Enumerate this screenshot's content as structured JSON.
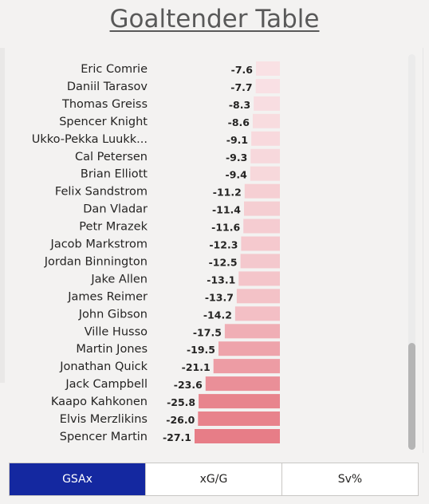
{
  "title": "Goaltender Table",
  "colors": {
    "bar_light": "#f9e1e4",
    "bar_dark": "#e77d87",
    "active_tab": "#1428a0"
  },
  "tabs": [
    {
      "label": "GSAx",
      "active": true
    },
    {
      "label": "xG/G",
      "active": false
    },
    {
      "label": "Sv%",
      "active": false
    }
  ],
  "chart_data": {
    "type": "bar",
    "orientation": "horizontal",
    "categories": [
      "Eric Comrie",
      "Daniil Tarasov",
      "Thomas Greiss",
      "Spencer Knight",
      "Ukko-Pekka Luukk...",
      "Cal Petersen",
      "Brian Elliott",
      "Felix Sandstrom",
      "Dan Vladar",
      "Petr Mrazek",
      "Jacob Markstrom",
      "Jordan Binnington",
      "Jake Allen",
      "James Reimer",
      "John Gibson",
      "Ville Husso",
      "Martin Jones",
      "Jonathan Quick",
      "Jack Campbell",
      "Kaapo Kahkonen",
      "Elvis Merzlikins",
      "Spencer Martin"
    ],
    "values": [
      -7.6,
      -7.7,
      -8.3,
      -8.6,
      -9.1,
      -9.3,
      -9.4,
      -11.2,
      -11.4,
      -11.6,
      -12.3,
      -12.5,
      -13.1,
      -13.7,
      -14.2,
      -17.5,
      -19.5,
      -21.1,
      -23.6,
      -25.8,
      -26.0,
      -27.1
    ],
    "data_labels": [
      "-7.6",
      "-7.7",
      "-8.3",
      "-8.6",
      "-9.1",
      "-9.3",
      "-9.4",
      "-11.2",
      "-11.4",
      "-11.6",
      "-12.3",
      "-12.5",
      "-13.1",
      "-13.7",
      "-14.2",
      "-17.5",
      "-19.5",
      "-21.1",
      "-23.6",
      "-25.8",
      "-26.0",
      "-27.1"
    ],
    "title": "",
    "xlabel": "",
    "ylabel": "",
    "grid": false
  }
}
